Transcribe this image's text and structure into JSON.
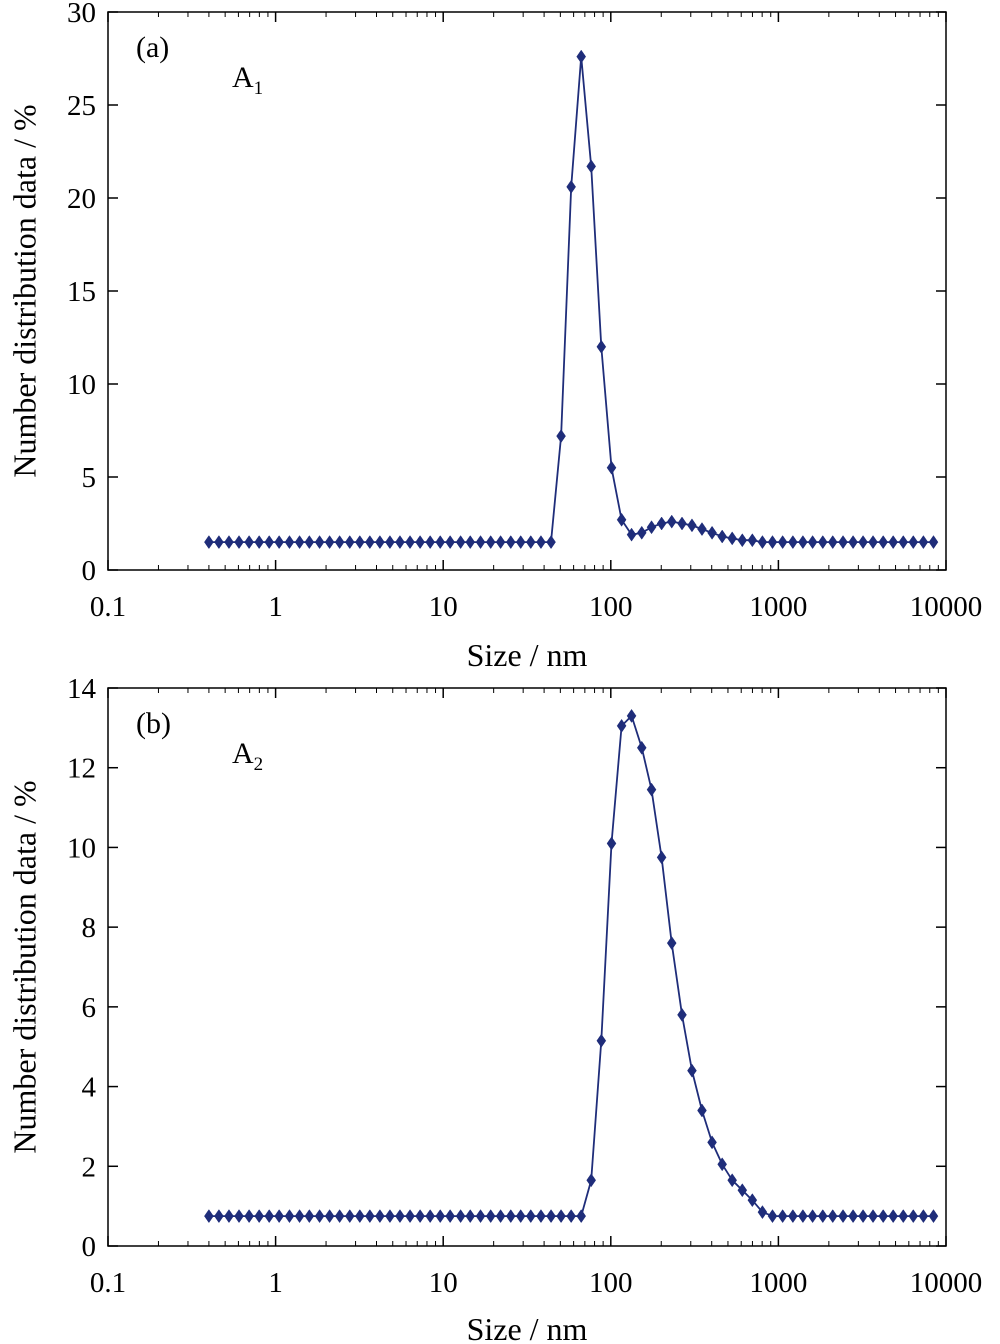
{
  "chart_data": [
    {
      "type": "line",
      "panel_label": "(a)",
      "annotation": {
        "text": "A",
        "subscript": "1"
      },
      "xlabel": "Size / nm",
      "ylabel": "Number distribution data / %",
      "xscale": "log",
      "xlim": [
        0.1,
        10000
      ],
      "ylim": [
        0,
        30
      ],
      "xticks": [
        0.1,
        1,
        10,
        100,
        1000,
        10000
      ],
      "xtick_labels": [
        "0.1",
        "1",
        "10",
        "100",
        "1000",
        "10000"
      ],
      "yticks": [
        0,
        5,
        10,
        15,
        20,
        25,
        30
      ],
      "ytick_labels": [
        "0",
        "5",
        "10",
        "15",
        "20",
        "25",
        "30"
      ],
      "grid": false,
      "marker": "diamond",
      "color": "#1f2d7a",
      "series": [
        {
          "x": [
            0.4,
            0.459,
            0.527,
            0.605,
            0.695,
            0.798,
            0.916,
            1.05,
            1.21,
            1.39,
            1.59,
            1.83,
            2.1,
            2.41,
            2.77,
            3.18,
            3.65,
            4.19,
            4.81,
            5.52,
            6.34,
            7.28,
            8.36,
            9.6,
            11.0,
            12.7,
            14.5,
            16.7,
            19.2,
            22.0,
            25.3,
            29.0,
            33.3,
            38.3,
            44.0,
            50.5,
            58.0,
            66.6,
            76.4,
            87.8,
            101,
            116,
            133,
            153,
            175,
            201,
            231,
            266,
            305,
            350,
            402,
            462,
            530,
            609,
            699,
            803,
            922,
            1060,
            1220,
            1400,
            1600,
            1840,
            2110,
            2430,
            2790,
            3200,
            3670,
            4220,
            4840,
            5560,
            6380,
            7330,
            8420
          ],
          "y": [
            1.5,
            1.5,
            1.5,
            1.5,
            1.5,
            1.5,
            1.5,
            1.5,
            1.5,
            1.5,
            1.5,
            1.5,
            1.5,
            1.5,
            1.5,
            1.5,
            1.5,
            1.5,
            1.5,
            1.5,
            1.5,
            1.5,
            1.5,
            1.5,
            1.5,
            1.5,
            1.5,
            1.5,
            1.5,
            1.5,
            1.5,
            1.5,
            1.5,
            1.5,
            1.5,
            7.2,
            20.6,
            27.6,
            21.7,
            12.0,
            5.5,
            2.7,
            1.9,
            2.0,
            2.3,
            2.5,
            2.6,
            2.5,
            2.4,
            2.2,
            2.0,
            1.8,
            1.7,
            1.6,
            1.6,
            1.5,
            1.5,
            1.5,
            1.5,
            1.5,
            1.5,
            1.5,
            1.5,
            1.5,
            1.5,
            1.5,
            1.5,
            1.5,
            1.5,
            1.5,
            1.5,
            1.5,
            1.5
          ]
        }
      ]
    },
    {
      "type": "line",
      "panel_label": "(b)",
      "annotation": {
        "text": "A",
        "subscript": "2"
      },
      "xlabel": "Size / nm",
      "ylabel": "Number distribution data / %",
      "xscale": "log",
      "xlim": [
        0.1,
        10000
      ],
      "ylim": [
        0,
        14
      ],
      "xticks": [
        0.1,
        1,
        10,
        100,
        1000,
        10000
      ],
      "xtick_labels": [
        "0.1",
        "1",
        "10",
        "100",
        "1000",
        "10000"
      ],
      "yticks": [
        0,
        2,
        4,
        6,
        8,
        10,
        12,
        14
      ],
      "ytick_labels": [
        "0",
        "2",
        "4",
        "6",
        "8",
        "10",
        "12",
        "14"
      ],
      "grid": false,
      "marker": "diamond",
      "color": "#1f2d7a",
      "series": [
        {
          "x": [
            0.4,
            0.459,
            0.527,
            0.605,
            0.695,
            0.798,
            0.916,
            1.05,
            1.21,
            1.39,
            1.59,
            1.83,
            2.1,
            2.41,
            2.77,
            3.18,
            3.65,
            4.19,
            4.81,
            5.52,
            6.34,
            7.28,
            8.36,
            9.6,
            11.0,
            12.7,
            14.5,
            16.7,
            19.2,
            22.0,
            25.3,
            29.0,
            33.3,
            38.3,
            44.0,
            50.5,
            58.0,
            66.6,
            76.4,
            87.8,
            101,
            116,
            133,
            153,
            175,
            201,
            231,
            266,
            305,
            350,
            402,
            462,
            530,
            609,
            699,
            803,
            922,
            1060,
            1220,
            1400,
            1600,
            1840,
            2110,
            2430,
            2790,
            3200,
            3670,
            4220,
            4840,
            5560,
            6380,
            7330,
            8420
          ],
          "y": [
            0.75,
            0.75,
            0.75,
            0.75,
            0.75,
            0.75,
            0.75,
            0.75,
            0.75,
            0.75,
            0.75,
            0.75,
            0.75,
            0.75,
            0.75,
            0.75,
            0.75,
            0.75,
            0.75,
            0.75,
            0.75,
            0.75,
            0.75,
            0.75,
            0.75,
            0.75,
            0.75,
            0.75,
            0.75,
            0.75,
            0.75,
            0.75,
            0.75,
            0.75,
            0.75,
            0.75,
            0.75,
            0.75,
            1.65,
            5.15,
            10.1,
            13.05,
            13.3,
            12.5,
            11.45,
            9.75,
            7.6,
            5.8,
            4.4,
            3.4,
            2.6,
            2.05,
            1.65,
            1.4,
            1.15,
            0.85,
            0.75,
            0.75,
            0.75,
            0.75,
            0.75,
            0.75,
            0.75,
            0.75,
            0.75,
            0.75,
            0.75,
            0.75,
            0.75,
            0.75,
            0.75,
            0.75,
            0.75
          ]
        }
      ]
    }
  ]
}
